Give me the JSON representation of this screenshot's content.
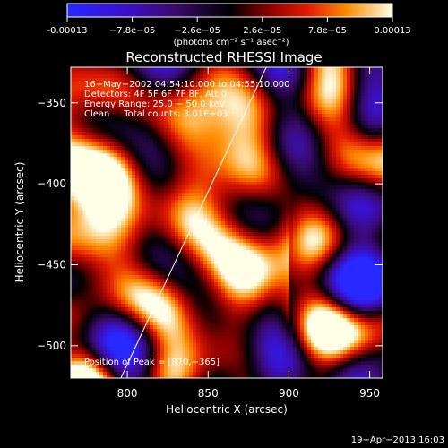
{
  "colorbar": {
    "ticks": [
      "-0.00013",
      "−7.8e−05",
      "−2.6e−05",
      "2.6e−05",
      "7.8e−05",
      "0.00013"
    ],
    "units": "(photons cm⁻² s⁻¹ asec⁻²)",
    "range": [
      -0.00013,
      0.00013
    ]
  },
  "plot": {
    "title": "Reconstructed RHESSI Image",
    "info_lines": [
      "16−May−2002 04:54:10.000 to 04:55:10.000",
      "Detectors: 4F 5F 6F 7F 8F, Att 0",
      "Energy Range: 25.0 − 50.0 keV",
      "Clean     Total counts: 3.01E+03"
    ],
    "peak_label": "Position of Peak = [870,−365]"
  },
  "timestamp": "19−Apr−2013 16:03",
  "chart_data": {
    "type": "heatmap",
    "title": "Reconstructed RHESSI Image",
    "xlabel": "Heliocentric X (arcsec)",
    "ylabel": "Heliocentric Y (arcsec)",
    "xlim": [
      765,
      958
    ],
    "ylim": [
      -520,
      -328
    ],
    "xticks": [
      800,
      850,
      900,
      950
    ],
    "yticks": [
      -350,
      -400,
      -450,
      -500
    ],
    "value_range": [
      -0.00013,
      0.00013
    ],
    "peak": [
      870,
      -365
    ],
    "limb_line": [
      [
        796,
        -520
      ],
      [
        886,
        -328
      ]
    ],
    "grid": false,
    "colormap": "rhessi-hot"
  }
}
